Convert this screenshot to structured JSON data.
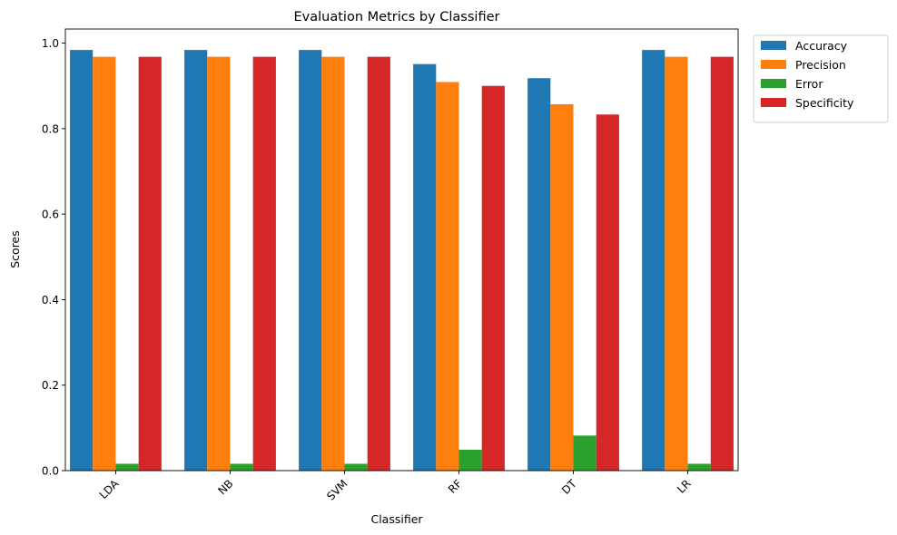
{
  "chart_data": {
    "type": "bar",
    "title": "Evaluation Metrics by Classifier",
    "xlabel": "Classifier",
    "ylabel": "Scores",
    "categories": [
      "LDA",
      "NB",
      "SVM",
      "RF",
      "DT",
      "LR"
    ],
    "ylim": [
      0,
      1.033
    ],
    "yticks": [
      0.0,
      0.2,
      0.4,
      0.6,
      0.8,
      1.0
    ],
    "ytick_labels": [
      "0.0",
      "0.2",
      "0.4",
      "0.6",
      "0.8",
      "1.0"
    ],
    "grid": false,
    "legend_position": "outside-top-right",
    "series": [
      {
        "name": "Accuracy",
        "color": "#1f77b4",
        "values": [
          0.984,
          0.984,
          0.984,
          0.951,
          0.918,
          0.984
        ]
      },
      {
        "name": "Precision",
        "color": "#ff7f0e",
        "values": [
          0.968,
          0.968,
          0.968,
          0.909,
          0.857,
          0.968
        ]
      },
      {
        "name": "Error",
        "color": "#2ca02c",
        "values": [
          0.016,
          0.016,
          0.016,
          0.049,
          0.082,
          0.016
        ]
      },
      {
        "name": "Specificity",
        "color": "#d62728",
        "values": [
          0.968,
          0.968,
          0.968,
          0.9,
          0.833,
          0.968
        ]
      }
    ]
  }
}
